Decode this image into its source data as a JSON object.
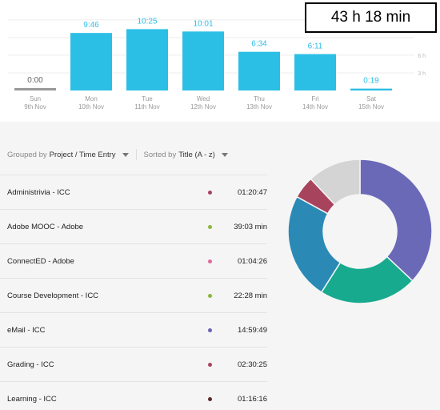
{
  "summary": {
    "total_time": "43 h 18 min"
  },
  "chart_data": {
    "type": "bar",
    "categories": [
      "Sun",
      "Mon",
      "Tue",
      "Wed",
      "Thu",
      "Fri",
      "Sat"
    ],
    "dates": [
      "9th Nov",
      "10th Nov",
      "11th Nov",
      "12th Nov",
      "13th Nov",
      "14th Nov",
      "15th Nov"
    ],
    "value_labels": [
      "0:00",
      "9:46",
      "10:25",
      "10:01",
      "6:34",
      "6:11",
      "0:19"
    ],
    "values": [
      0,
      9.77,
      10.42,
      10.02,
      6.57,
      6.18,
      0.32
    ],
    "y_tick_labels": [
      "6 h",
      "3 h"
    ],
    "y_ticks": [
      6,
      3
    ],
    "ylim": [
      0,
      13.6
    ],
    "bar_color": "#2bbfe6",
    "zero_bar_color": "#999999",
    "label_color": "#2bbfe6",
    "zero_label_color": "#666666"
  },
  "controls": {
    "grouped_prefix": "Grouped by",
    "grouped_value": "Project / Time Entry",
    "sorted_prefix": "Sorted by",
    "sorted_value": "Title (A - z)"
  },
  "entries": [
    {
      "title": "Administrivia - ICC",
      "duration": "01:20:47",
      "color": "#a8435e"
    },
    {
      "title": "Adobe MOOC - Adobe",
      "duration": "39:03 min",
      "color": "#8cb63c"
    },
    {
      "title": "ConnectED - Adobe",
      "duration": "01:04:26",
      "color": "#e06b9a"
    },
    {
      "title": "Course Development - ICC",
      "duration": "22:28 min",
      "color": "#8cb63c"
    },
    {
      "title": "eMail - ICC",
      "duration": "14:59:49",
      "color": "#6a63b7"
    },
    {
      "title": "Grading - ICC",
      "duration": "02:30:25",
      "color": "#a8435e"
    },
    {
      "title": "Learning - ICC",
      "duration": "01:16:16",
      "color": "#5a2a2a"
    }
  ],
  "donut": {
    "slices": [
      {
        "value": 37,
        "color": "#6a69b8"
      },
      {
        "value": 22,
        "color": "#17aa8e"
      },
      {
        "value": 24,
        "color": "#2a8ab5"
      },
      {
        "value": 5,
        "color": "#a8435e"
      },
      {
        "value": 12,
        "color": "#d4d4d4"
      }
    ]
  }
}
